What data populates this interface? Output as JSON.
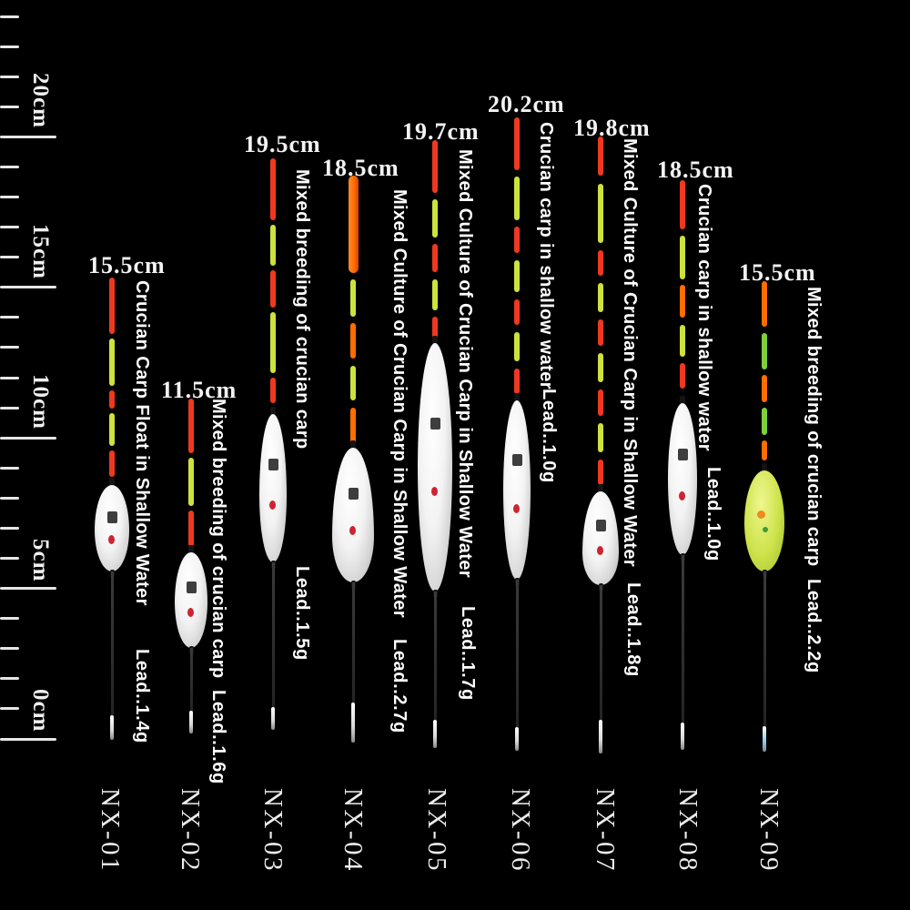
{
  "ruler": {
    "labels": [
      "0cm",
      "5cm",
      "10cm",
      "15cm",
      "20cm"
    ],
    "range_cm": [
      0,
      24
    ],
    "major_every_cm": 5
  },
  "floats": [
    {
      "model": "NX-01",
      "length": "15.5cm",
      "description": "Crucian Carp Float in Shallow Water",
      "lead": "Lead..1.4g"
    },
    {
      "model": "NX-02",
      "length": "11.5cm",
      "description": "Mixed breeding of crucian carp",
      "lead": "Lead..1.6g"
    },
    {
      "model": "NX-03",
      "length": "19.5cm",
      "description": "Mixed breeding of crucian carp",
      "lead": "Lead..1.5g"
    },
    {
      "model": "NX-04",
      "length": "18.5cm",
      "description": "Mixed Culture of Crucian Carp in Shallow Water",
      "lead": "Lead..2.7g"
    },
    {
      "model": "NX-05",
      "length": "19.7cm",
      "description": "Mixed Culture of Crucian Carp in Shallow Water",
      "lead": "Lead..1.7g"
    },
    {
      "model": "NX-06",
      "length": "20.2cm",
      "description": "Crucian carp in shallow water",
      "lead": "Lead..1.0g"
    },
    {
      "model": "NX-07",
      "length": "19.8cm",
      "description": "Mixed Culture of Crucian Carp in Shallow Water",
      "lead": "Lead..1.8g"
    },
    {
      "model": "NX-08",
      "length": "18.5cm",
      "description": "Crucian carp in shallow water",
      "lead": "Lead..1.0g"
    },
    {
      "model": "NX-09",
      "length": "15.5cm",
      "description": "Mixed breeding of crucian carp",
      "lead": "Lead..2.2g"
    }
  ],
  "colors": {
    "background": "#000000",
    "text": "#f2f2f2",
    "ruler_tick": "#e6e6e6",
    "segment_red": "#ee3920",
    "segment_orange": "#ff6d00",
    "segment_yellow": "#cde23e",
    "segment_green": "#7fd03c",
    "body_white": "#f4f4f4",
    "body_lemon": "#cde24a",
    "stem_dark": "#2e2e2e",
    "tip_silver": "#d9d9d9",
    "tip_blue": "#8ccdeb",
    "logo_red": "#cf2331"
  }
}
